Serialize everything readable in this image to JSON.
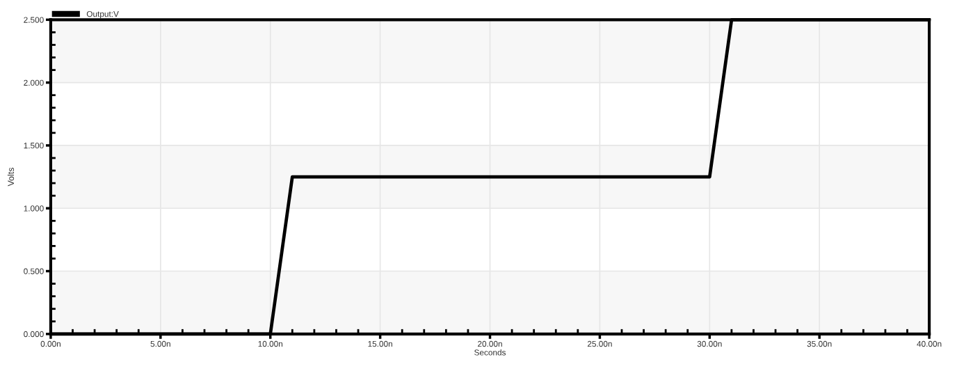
{
  "chart_data": {
    "type": "line",
    "xlabel": "Seconds",
    "ylabel": "Volts",
    "x": [
      0,
      10,
      11,
      30,
      31,
      40
    ],
    "series": [
      {
        "name": "Output:V",
        "color": "#000000",
        "values": [
          0,
          0,
          1.25,
          1.25,
          2.5,
          2.5
        ]
      }
    ],
    "xlim": [
      0,
      40
    ],
    "ylim": [
      0,
      2.5
    ],
    "xticks": [
      {
        "value": 0,
        "label": "0.00n"
      },
      {
        "value": 1,
        "label": null
      },
      {
        "value": 2,
        "label": null
      },
      {
        "value": 3,
        "label": null
      },
      {
        "value": 4,
        "label": null
      },
      {
        "value": 5,
        "label": "5.00n"
      },
      {
        "value": 6,
        "label": null
      },
      {
        "value": 7,
        "label": null
      },
      {
        "value": 8,
        "label": null
      },
      {
        "value": 9,
        "label": null
      },
      {
        "value": 10,
        "label": "10.00n"
      },
      {
        "value": 11,
        "label": null
      },
      {
        "value": 12,
        "label": null
      },
      {
        "value": 13,
        "label": null
      },
      {
        "value": 14,
        "label": null
      },
      {
        "value": 15,
        "label": "15.00n"
      },
      {
        "value": 16,
        "label": null
      },
      {
        "value": 17,
        "label": null
      },
      {
        "value": 18,
        "label": null
      },
      {
        "value": 19,
        "label": null
      },
      {
        "value": 20,
        "label": "20.00n"
      },
      {
        "value": 21,
        "label": null
      },
      {
        "value": 22,
        "label": null
      },
      {
        "value": 23,
        "label": null
      },
      {
        "value": 24,
        "label": null
      },
      {
        "value": 25,
        "label": "25.00n"
      },
      {
        "value": 26,
        "label": null
      },
      {
        "value": 27,
        "label": null
      },
      {
        "value": 28,
        "label": null
      },
      {
        "value": 29,
        "label": null
      },
      {
        "value": 30,
        "label": "30.00n"
      },
      {
        "value": 31,
        "label": null
      },
      {
        "value": 32,
        "label": null
      },
      {
        "value": 33,
        "label": null
      },
      {
        "value": 34,
        "label": null
      },
      {
        "value": 35,
        "label": "35.00n"
      },
      {
        "value": 36,
        "label": null
      },
      {
        "value": 37,
        "label": null
      },
      {
        "value": 38,
        "label": null
      },
      {
        "value": 39,
        "label": null
      },
      {
        "value": 40,
        "label": "40.00n"
      }
    ],
    "yticks": [
      {
        "value": 0,
        "label": "0.000"
      },
      {
        "value": 0.1,
        "label": null
      },
      {
        "value": 0.2,
        "label": null
      },
      {
        "value": 0.3,
        "label": null
      },
      {
        "value": 0.4,
        "label": null
      },
      {
        "value": 0.5,
        "label": "0.500"
      },
      {
        "value": 0.6,
        "label": null
      },
      {
        "value": 0.7,
        "label": null
      },
      {
        "value": 0.8,
        "label": null
      },
      {
        "value": 0.9,
        "label": null
      },
      {
        "value": 1,
        "label": "1.000"
      },
      {
        "value": 1.1,
        "label": null
      },
      {
        "value": 1.2,
        "label": null
      },
      {
        "value": 1.3,
        "label": null
      },
      {
        "value": 1.4,
        "label": null
      },
      {
        "value": 1.5,
        "label": "1.500"
      },
      {
        "value": 1.6,
        "label": null
      },
      {
        "value": 1.7,
        "label": null
      },
      {
        "value": 1.8,
        "label": null
      },
      {
        "value": 1.9,
        "label": null
      },
      {
        "value": 2,
        "label": "2.000"
      },
      {
        "value": 2.1,
        "label": null
      },
      {
        "value": 2.2,
        "label": null
      },
      {
        "value": 2.3,
        "label": null
      },
      {
        "value": 2.4,
        "label": null
      },
      {
        "value": 2.5,
        "label": "2.500"
      }
    ],
    "grid": true,
    "legend": "top left",
    "line_style": "solid",
    "bands": [
      {
        "axis": "y",
        "from": 0,
        "to": 0.5,
        "color": "#f7f7f7"
      },
      {
        "axis": "y",
        "from": 1,
        "to": 1.5,
        "color": "#f7f7f7"
      },
      {
        "axis": "y",
        "from": 2,
        "to": 2.5,
        "color": "#f7f7f7"
      }
    ]
  }
}
